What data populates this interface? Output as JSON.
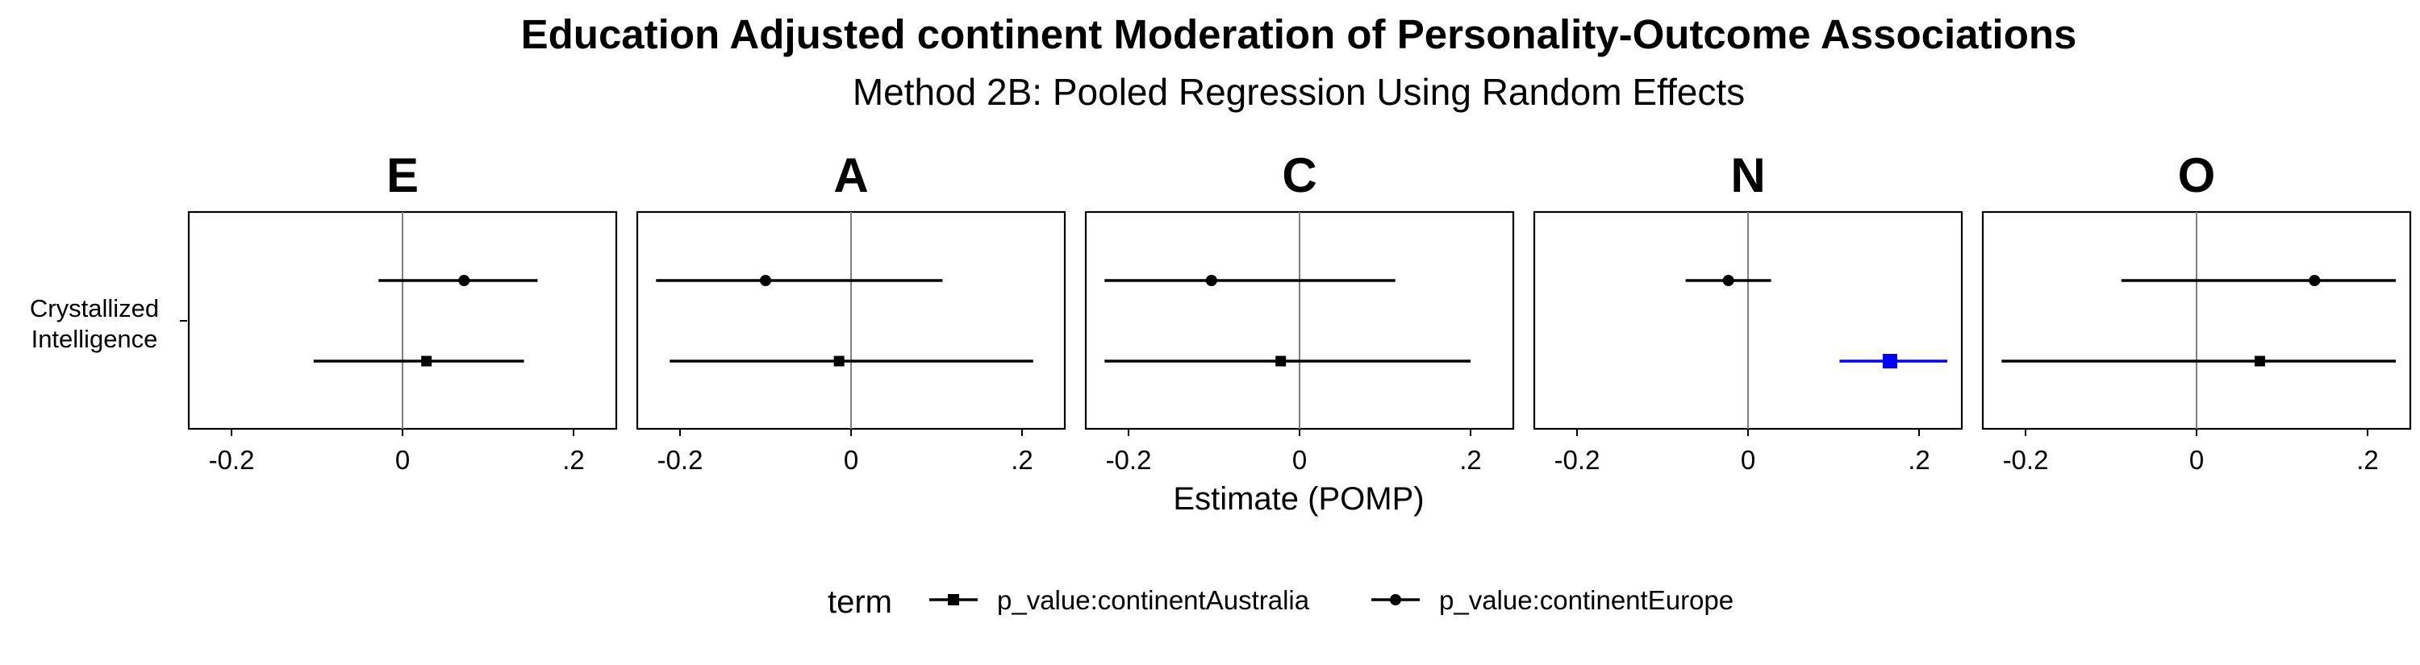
{
  "chart_data": {
    "type": "forest",
    "title": "Education Adjusted continent Moderation of Personality-Outcome Associations",
    "subtitle": "Method 2B: Pooled Regression Using Random Effects",
    "xlabel": "Estimate (POMP)",
    "ylabel": "",
    "xlim": [
      -0.25,
      0.25
    ],
    "xticks": [
      {
        "value": -0.2,
        "label": "-0.2"
      },
      {
        "value": 0,
        "label": "0"
      },
      {
        "value": 0.2,
        "label": ".2"
      }
    ],
    "y_categories": [
      "Crystallized Intelligence"
    ],
    "y_category_lines": [
      "Crystallized",
      "Intelligence"
    ],
    "reference_line": 0,
    "legend": {
      "title": "term",
      "position": "bottom",
      "entries": [
        {
          "key": "australia",
          "label": "p_value:continentAustralia",
          "shape": "square"
        },
        {
          "key": "europe",
          "label": "p_value:continentEurope",
          "shape": "circle"
        }
      ]
    },
    "colors": {
      "default": "#000000",
      "highlight": "#0000ff",
      "refline": "#808080"
    },
    "panels": [
      {
        "facet": "E",
        "points": [
          {
            "term": "europe",
            "estimate": 0.072,
            "lower": -0.028,
            "upper": 0.158,
            "significant": false
          },
          {
            "term": "australia",
            "estimate": 0.028,
            "lower": -0.104,
            "upper": 0.142,
            "significant": false
          }
        ]
      },
      {
        "facet": "A",
        "points": [
          {
            "term": "europe",
            "estimate": -0.1,
            "lower": -0.228,
            "upper": 0.107,
            "significant": false
          },
          {
            "term": "australia",
            "estimate": -0.014,
            "lower": -0.212,
            "upper": 0.213,
            "significant": false
          }
        ]
      },
      {
        "facet": "C",
        "points": [
          {
            "term": "europe",
            "estimate": -0.103,
            "lower": -0.228,
            "upper": 0.112,
            "significant": false
          },
          {
            "term": "australia",
            "estimate": -0.022,
            "lower": -0.228,
            "upper": 0.2,
            "significant": false
          }
        ]
      },
      {
        "facet": "N",
        "points": [
          {
            "term": "europe",
            "estimate": -0.023,
            "lower": -0.073,
            "upper": 0.027,
            "significant": false
          },
          {
            "term": "australia",
            "estimate": 0.166,
            "lower": 0.107,
            "upper": 0.233,
            "significant": true
          }
        ]
      },
      {
        "facet": "O",
        "points": [
          {
            "term": "europe",
            "estimate": 0.138,
            "lower": -0.088,
            "upper": 0.233,
            "significant": false
          },
          {
            "term": "australia",
            "estimate": 0.074,
            "lower": -0.228,
            "upper": 0.233,
            "significant": false
          }
        ]
      }
    ]
  }
}
